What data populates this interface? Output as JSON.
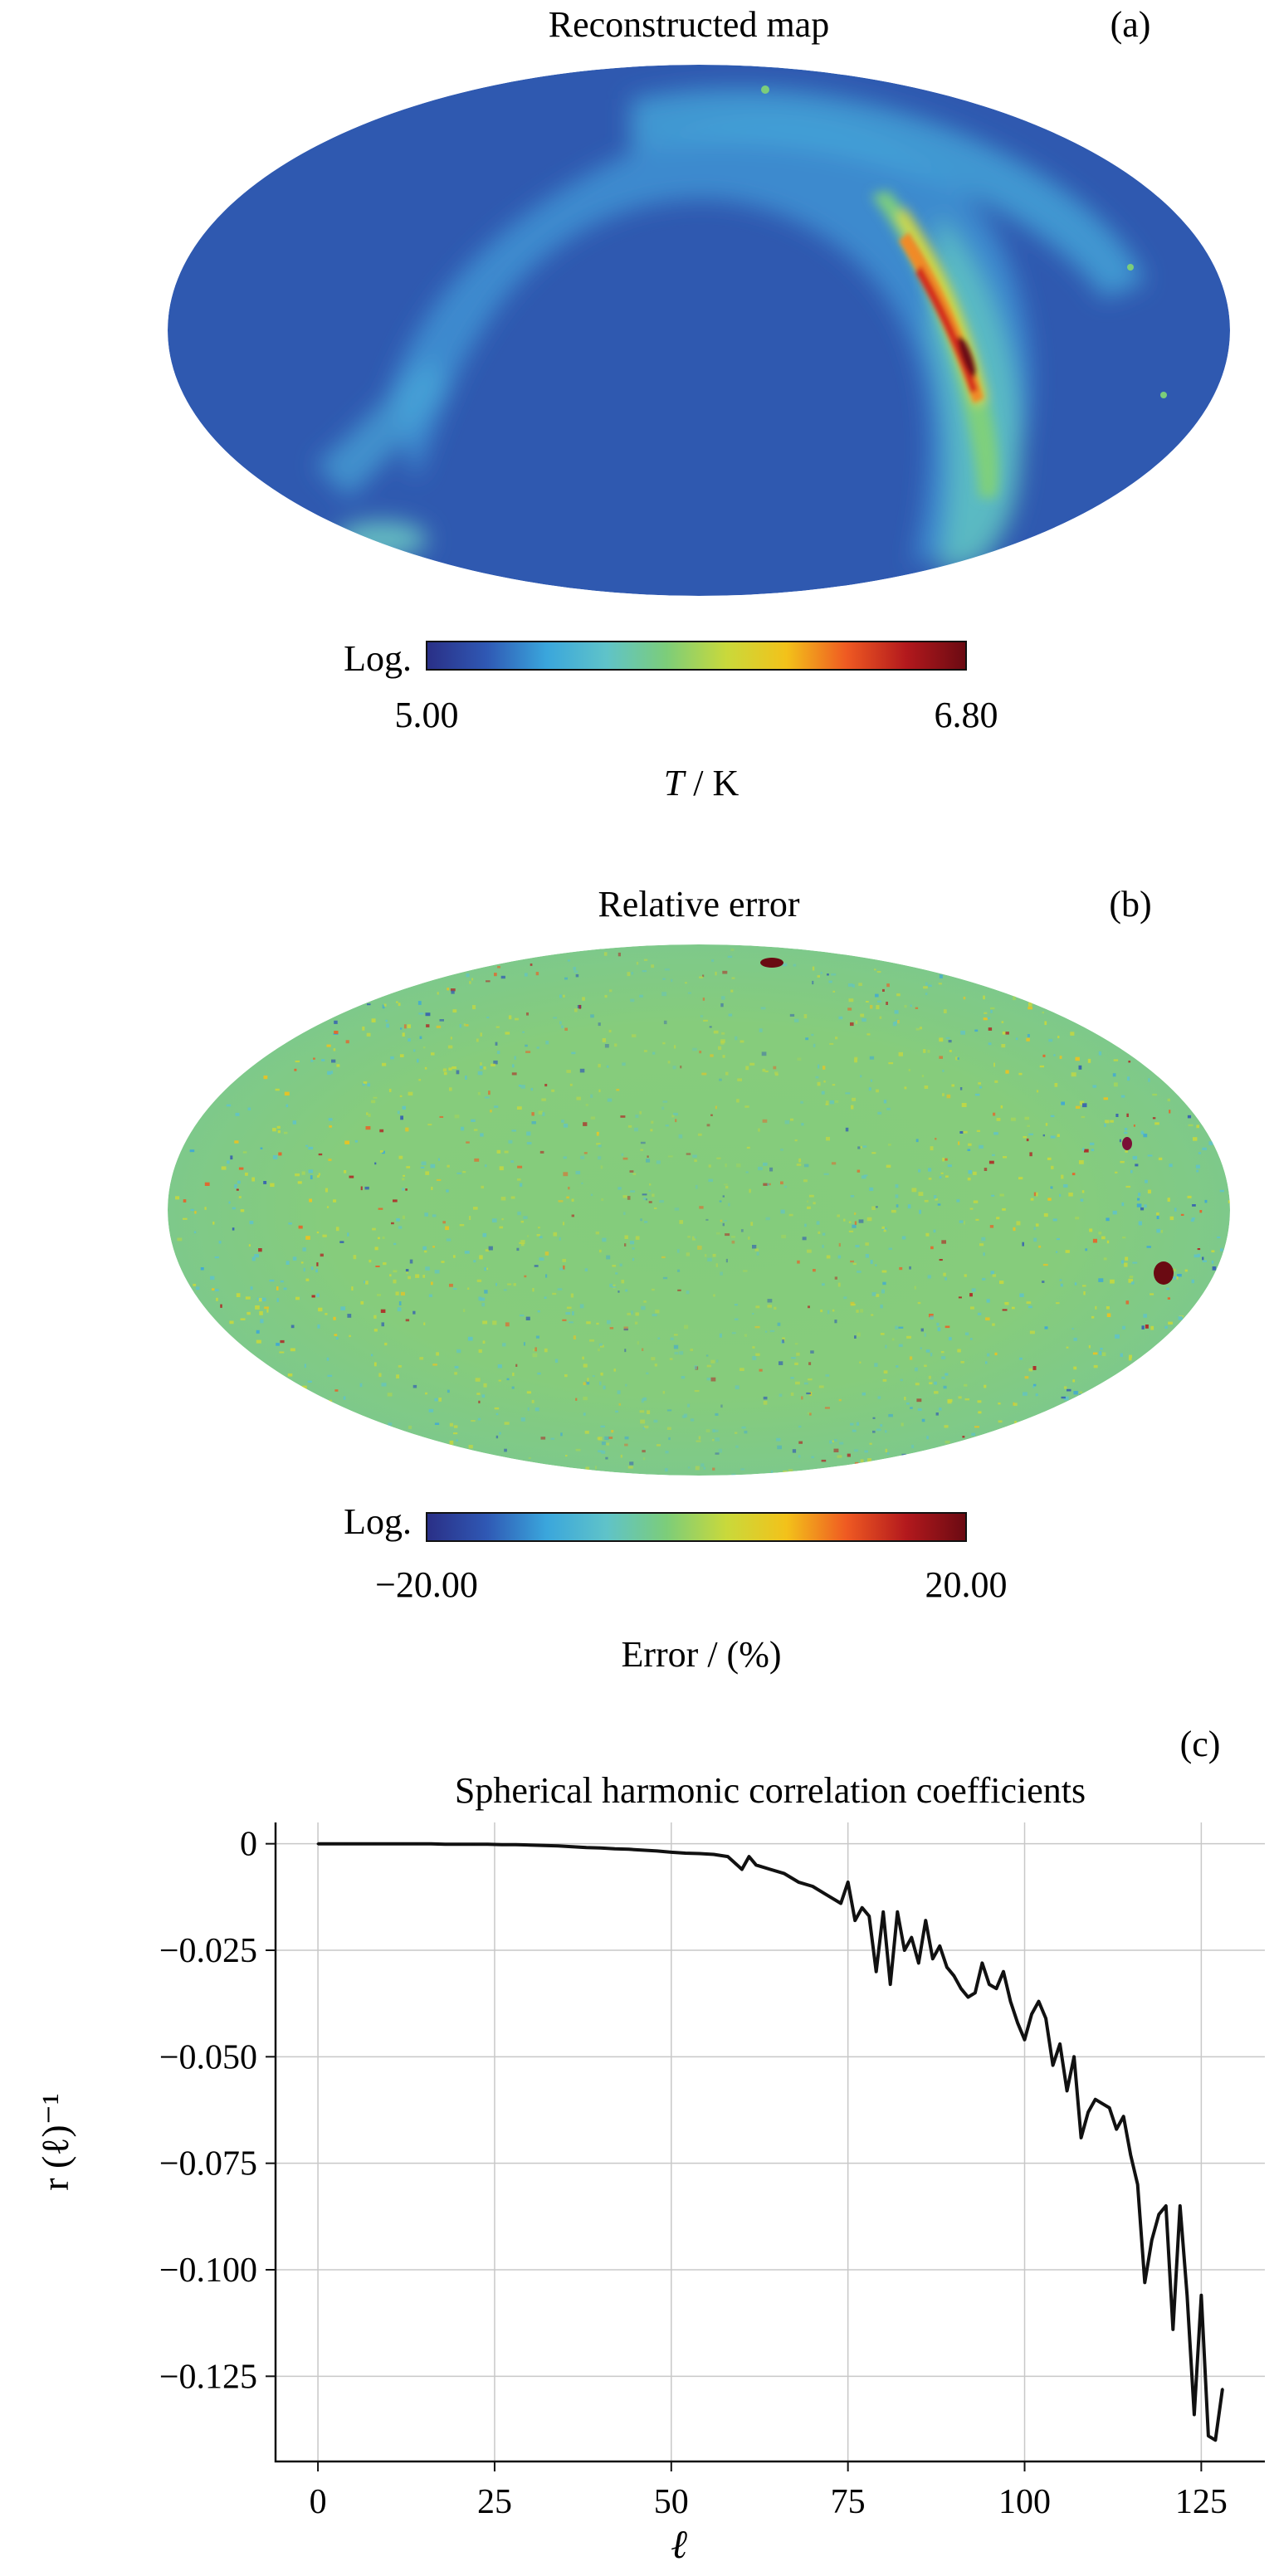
{
  "panels": {
    "a": {
      "title": "Reconstructed map",
      "letter": "(a)",
      "colorbar": {
        "scale_label": "Log.",
        "min_label": "5.00",
        "max_label": "6.80",
        "unit_symbol": "T",
        "unit_suffix": " / K"
      }
    },
    "b": {
      "title": "Relative error",
      "letter": "(b)",
      "colorbar": {
        "scale_label": "Log.",
        "min_label": "−20.00",
        "max_label": "20.00",
        "unit_label": "Error / (%)"
      }
    },
    "c": {
      "letter": "(c)",
      "title": "Spherical harmonic correlation coefficients"
    }
  },
  "colors": {
    "colormap": [
      "#2a2f86",
      "#2f58b4",
      "#3aa6dc",
      "#5fc3c9",
      "#7ccd7a",
      "#c9d93b",
      "#f3c21a",
      "#ef5a22",
      "#b3191d",
      "#6a0a12"
    ],
    "map_background": "#2f59b0",
    "error_background": "#86cc7c",
    "line": "#111111",
    "grid": "#c8c8c8"
  },
  "chart_data": [
    {
      "type": "heatmap",
      "projection": "mollweide",
      "title": "Reconstructed map",
      "colorbar_label": "T / K",
      "scale": "log",
      "range": [
        5.0,
        6.8
      ]
    },
    {
      "type": "heatmap",
      "projection": "mollweide",
      "title": "Relative error",
      "colorbar_label": "Error / (%)",
      "scale": "log",
      "range": [
        -20.0,
        20.0
      ]
    },
    {
      "type": "line",
      "title": "Spherical harmonic correlation coefficients",
      "xlabel": "ℓ",
      "ylabel": "r (ℓ)⁻¹",
      "xlim": [
        -6,
        134
      ],
      "ylim": [
        -0.145,
        0.005
      ],
      "xticks": [
        0,
        25,
        50,
        75,
        100,
        125
      ],
      "xtick_labels": [
        "0",
        "25",
        "50",
        "75",
        "100",
        "125"
      ],
      "yticks": [
        0,
        -0.025,
        -0.05,
        -0.075,
        -0.1,
        -0.125
      ],
      "ytick_labels": [
        "0",
        "−0.025",
        "−0.050",
        "−0.075",
        "−0.100",
        "−0.125"
      ],
      "grid": true,
      "x": [
        0,
        2,
        4,
        6,
        8,
        10,
        12,
        14,
        16,
        18,
        20,
        22,
        24,
        26,
        28,
        30,
        32,
        34,
        36,
        38,
        40,
        42,
        44,
        46,
        48,
        50,
        52,
        54,
        56,
        58,
        60,
        61,
        62,
        64,
        66,
        68,
        70,
        72,
        74,
        75,
        76,
        77,
        78,
        79,
        80,
        81,
        82,
        83,
        84,
        85,
        86,
        87,
        88,
        89,
        90,
        91,
        92,
        93,
        94,
        95,
        96,
        97,
        98,
        99,
        100,
        101,
        102,
        103,
        104,
        105,
        106,
        107,
        108,
        109,
        110,
        111,
        112,
        113,
        114,
        115,
        116,
        117,
        118,
        119,
        120,
        121,
        122,
        123,
        124,
        125,
        126,
        127,
        128
      ],
      "y": [
        0,
        0,
        0,
        0,
        0,
        0,
        0,
        0,
        0,
        -0.0001,
        -0.0001,
        -0.0001,
        -0.0001,
        -0.0002,
        -0.0002,
        -0.0003,
        -0.0004,
        -0.0005,
        -0.0007,
        -0.0009,
        -0.001,
        -0.0012,
        -0.0013,
        -0.0015,
        -0.0017,
        -0.002,
        -0.0022,
        -0.0023,
        -0.0025,
        -0.003,
        -0.006,
        -0.003,
        -0.005,
        -0.006,
        -0.007,
        -0.009,
        -0.01,
        -0.012,
        -0.014,
        -0.009,
        -0.018,
        -0.015,
        -0.017,
        -0.03,
        -0.016,
        -0.033,
        -0.016,
        -0.025,
        -0.022,
        -0.028,
        -0.018,
        -0.027,
        -0.024,
        -0.029,
        -0.031,
        -0.034,
        -0.036,
        -0.035,
        -0.028,
        -0.033,
        -0.034,
        -0.03,
        -0.037,
        -0.042,
        -0.046,
        -0.04,
        -0.037,
        -0.041,
        -0.052,
        -0.047,
        -0.058,
        -0.05,
        -0.069,
        -0.063,
        -0.06,
        -0.061,
        -0.062,
        -0.067,
        -0.064,
        -0.073,
        -0.08,
        -0.103,
        -0.093,
        -0.087,
        -0.085,
        -0.114,
        -0.085,
        -0.106,
        -0.134,
        -0.106,
        -0.139,
        -0.14,
        -0.128
      ]
    }
  ]
}
